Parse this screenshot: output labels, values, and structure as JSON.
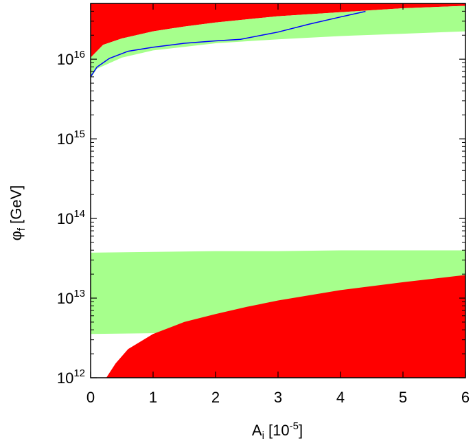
{
  "chart_data": {
    "type": "area",
    "title": "",
    "xlabel": "A",
    "xlabel_sub": "i",
    "xlabel_unit_open": " [10",
    "xlabel_unit_sup": "-5",
    "xlabel_unit_close": "]",
    "ylabel": "φ",
    "ylabel_sub": "f",
    "ylabel_unit": " [GeV]",
    "xlim": [
      0,
      6
    ],
    "ylim_log10": [
      12,
      16.7
    ],
    "yscale": "log",
    "grid": false,
    "legend": "none",
    "x_ticks": [
      {
        "value": 0,
        "label": "0"
      },
      {
        "value": 1,
        "label": "1"
      },
      {
        "value": 2,
        "label": "2"
      },
      {
        "value": 3,
        "label": "3"
      },
      {
        "value": 4,
        "label": "4"
      },
      {
        "value": 5,
        "label": "5"
      },
      {
        "value": 6,
        "label": "6"
      }
    ],
    "y_ticks": [
      {
        "exp": 12,
        "base": "10",
        "sup": "12"
      },
      {
        "exp": 13,
        "base": "10",
        "sup": "13"
      },
      {
        "exp": 14,
        "base": "10",
        "sup": "14"
      },
      {
        "exp": 15,
        "base": "10",
        "sup": "15"
      },
      {
        "exp": 16,
        "base": "10",
        "sup": "16"
      }
    ],
    "regions": [
      {
        "id": "red-upper",
        "color": "#ff0000",
        "fill_to": "top",
        "boundary": [
          [
            0,
            16.02
          ],
          [
            0.2,
            16.18
          ],
          [
            0.5,
            16.26
          ],
          [
            1,
            16.35
          ],
          [
            1.5,
            16.41
          ],
          [
            2,
            16.46
          ],
          [
            3,
            16.54
          ],
          [
            4,
            16.59
          ],
          [
            5,
            16.64
          ],
          [
            6,
            16.67
          ]
        ]
      },
      {
        "id": "green-upper",
        "color": "#a6ff8c",
        "lower": [
          [
            0,
            15.76
          ],
          [
            0.1,
            15.88
          ],
          [
            0.5,
            16.02
          ],
          [
            1,
            16.11
          ],
          [
            2,
            16.2
          ],
          [
            3,
            16.25
          ],
          [
            4,
            16.29
          ],
          [
            5,
            16.32
          ],
          [
            6,
            16.35
          ]
        ],
        "upper": [
          [
            0,
            16.02
          ],
          [
            0.2,
            16.18
          ],
          [
            0.5,
            16.26
          ],
          [
            1,
            16.35
          ],
          [
            1.5,
            16.41
          ],
          [
            2,
            16.46
          ],
          [
            3,
            16.54
          ],
          [
            4,
            16.59
          ],
          [
            5,
            16.64
          ],
          [
            6,
            16.67
          ]
        ]
      },
      {
        "id": "green-lower",
        "color": "#a6ff8c",
        "lower": [
          [
            0,
            12.55
          ],
          [
            1,
            12.56
          ],
          [
            2,
            12.57
          ],
          [
            3,
            12.58
          ],
          [
            4,
            12.59
          ],
          [
            5,
            12.6
          ],
          [
            6,
            12.61
          ]
        ],
        "upper": [
          [
            0,
            13.57
          ],
          [
            1,
            13.58
          ],
          [
            2,
            13.59
          ],
          [
            3,
            13.59
          ],
          [
            4,
            13.6
          ],
          [
            5,
            13.6
          ],
          [
            6,
            13.6
          ]
        ]
      },
      {
        "id": "red-lower",
        "color": "#ff0000",
        "fill_to": "bottom",
        "boundary": [
          [
            0.25,
            12.0
          ],
          [
            0.4,
            12.18
          ],
          [
            0.6,
            12.36
          ],
          [
            1,
            12.55
          ],
          [
            1.5,
            12.7
          ],
          [
            2,
            12.8
          ],
          [
            2.5,
            12.89
          ],
          [
            3,
            12.97
          ],
          [
            4,
            13.1
          ],
          [
            5,
            13.2
          ],
          [
            6,
            13.29
          ]
        ]
      }
    ],
    "series": [
      {
        "color": "#0000ff",
        "points": [
          [
            0,
            15.78
          ],
          [
            0.1,
            15.9
          ],
          [
            0.3,
            16.01
          ],
          [
            0.6,
            16.1
          ],
          [
            1,
            16.15
          ],
          [
            1.5,
            16.2
          ],
          [
            2,
            16.23
          ],
          [
            2.4,
            16.25
          ],
          [
            3,
            16.34
          ],
          [
            3.5,
            16.44
          ],
          [
            4,
            16.53
          ],
          [
            4.4,
            16.6
          ]
        ]
      }
    ]
  }
}
